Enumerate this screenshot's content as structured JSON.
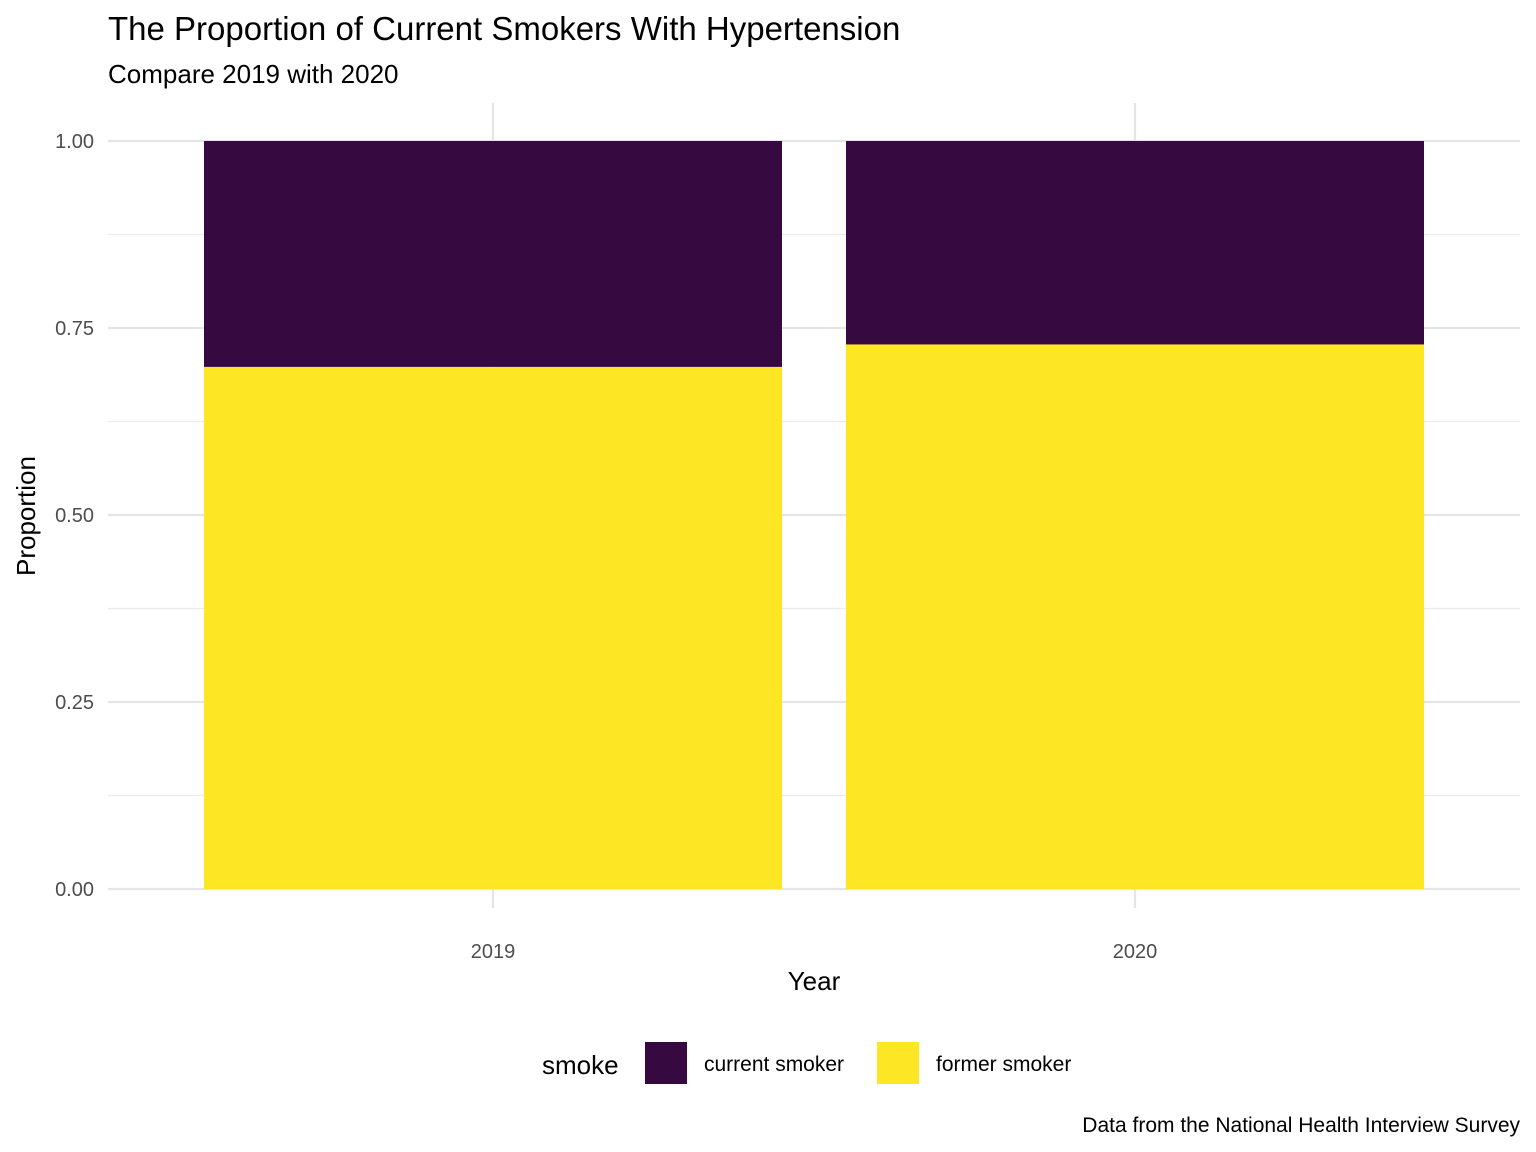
{
  "chart_data": {
    "type": "bar",
    "stacked": true,
    "title": "The Proportion of Current Smokers With Hypertension",
    "subtitle": "Compare 2019 with 2020",
    "xlabel": "Year",
    "ylabel": "Proportion",
    "caption": "Data from the National Health Interview Survey",
    "categories": [
      "2019",
      "2020"
    ],
    "ylim": [
      0,
      1
    ],
    "yticks": [
      "0.00",
      "0.25",
      "0.50",
      "0.75",
      "1.00"
    ],
    "ytick_values": [
      0,
      0.25,
      0.5,
      0.75,
      1.0
    ],
    "grid": true,
    "legend": {
      "title": "smoke",
      "placement": "bottom"
    },
    "series": [
      {
        "name": "former smoker",
        "color": "#FDE725",
        "values": [
          0.698,
          0.728
        ]
      },
      {
        "name": "current smoker",
        "color": "#360A41",
        "values": [
          0.302,
          0.272
        ]
      }
    ],
    "legend_order": [
      "current smoker",
      "former smoker"
    ]
  }
}
